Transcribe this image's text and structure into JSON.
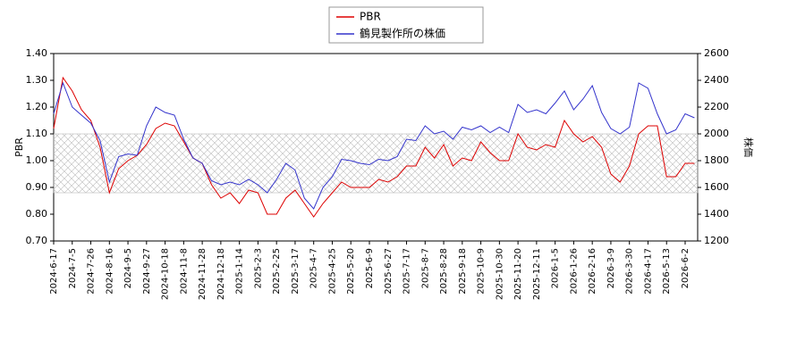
{
  "chart_data": {
    "type": "line",
    "x": [
      "2024-6-17",
      null,
      "2024-7-5",
      null,
      "2024-7-26",
      null,
      "2024-8-16",
      null,
      "2024-9-5",
      null,
      "2024-9-27",
      null,
      "2024-10-18",
      null,
      "2024-11-8",
      null,
      "2024-11-28",
      null,
      "2024-12-18",
      null,
      "2025-1-14",
      null,
      "2025-2-3",
      null,
      "2025-2-25",
      null,
      "2025-3-17",
      null,
      "2025-4-7",
      null,
      "2025-4-25",
      null,
      "2025-5-20",
      null,
      "2025-6-9",
      null,
      "2025-6-27",
      null,
      "2025-7-17",
      null,
      "2025-8-7",
      null,
      "2025-8-28",
      null,
      "2025-9-18",
      null,
      "2025-10-9",
      null,
      "2025-10-30",
      null,
      "2025-11-20",
      null,
      "2025-12-11",
      null,
      "2026-1-5",
      null,
      "2026-1-26",
      null,
      "2026-2-16",
      null,
      "2026-3-9",
      null,
      "2026-3-30",
      null,
      "2026-4-17",
      null,
      "2026-5-13",
      null,
      "2026-6-2",
      null
    ],
    "ylabel": "PBR",
    "y2label": "株価",
    "ylim": [
      0.7,
      1.4
    ],
    "yticks": [
      {
        "value": 0.7,
        "label": "0.70"
      },
      {
        "value": 0.8,
        "label": "0.80"
      },
      {
        "value": 0.9,
        "label": "0.90"
      },
      {
        "value": 1.0,
        "label": "1.00"
      },
      {
        "value": 1.1,
        "label": "1.10"
      },
      {
        "value": 1.2,
        "label": "1.20"
      },
      {
        "value": 1.3,
        "label": "1.30"
      },
      {
        "value": 1.4,
        "label": "1.40"
      }
    ],
    "y2lim": [
      1200,
      2600
    ],
    "y2ticks": [
      1200,
      1400,
      1600,
      1800,
      2000,
      2200,
      2400,
      2600
    ],
    "shaded_range": [
      0.88,
      1.1
    ],
    "legend": "top",
    "series": [
      {
        "name": "PBR",
        "color": "#dd0000",
        "axis": "y",
        "values": [
          1.12,
          1.31,
          1.26,
          1.19,
          1.15,
          1.05,
          0.88,
          0.97,
          1.0,
          1.02,
          1.06,
          1.12,
          1.14,
          1.13,
          1.07,
          1.01,
          0.99,
          0.91,
          0.86,
          0.88,
          0.84,
          0.89,
          0.88,
          0.8,
          0.8,
          0.86,
          0.89,
          0.84,
          0.79,
          0.84,
          0.88,
          0.92,
          0.9,
          0.9,
          0.9,
          0.93,
          0.92,
          0.94,
          0.98,
          0.98,
          1.05,
          1.01,
          1.06,
          0.98,
          1.01,
          1.0,
          1.07,
          1.03,
          1.0,
          1.0,
          1.1,
          1.05,
          1.04,
          1.06,
          1.05,
          1.15,
          1.1,
          1.07,
          1.09,
          1.05,
          0.95,
          0.92,
          0.98,
          1.1,
          1.13,
          1.13,
          0.94,
          0.94,
          0.99,
          0.99
        ]
      },
      {
        "name": "鶴見製作所の株価",
        "color": "#3333cc",
        "axis": "y2",
        "values": [
          2150,
          2380,
          2200,
          2140,
          2080,
          1950,
          1640,
          1830,
          1850,
          1840,
          2060,
          2200,
          2160,
          2140,
          1960,
          1820,
          1780,
          1650,
          1620,
          1640,
          1620,
          1660,
          1620,
          1560,
          1660,
          1780,
          1730,
          1520,
          1440,
          1600,
          1680,
          1810,
          1800,
          1780,
          1770,
          1810,
          1800,
          1830,
          1960,
          1950,
          2060,
          2000,
          2020,
          1960,
          2050,
          2030,
          2060,
          2010,
          2050,
          2010,
          2220,
          2160,
          2180,
          2150,
          2230,
          2320,
          2180,
          2260,
          2360,
          2160,
          2040,
          2000,
          2050,
          2380,
          2340,
          2150,
          2000,
          2030,
          2150,
          2120
        ]
      }
    ]
  }
}
